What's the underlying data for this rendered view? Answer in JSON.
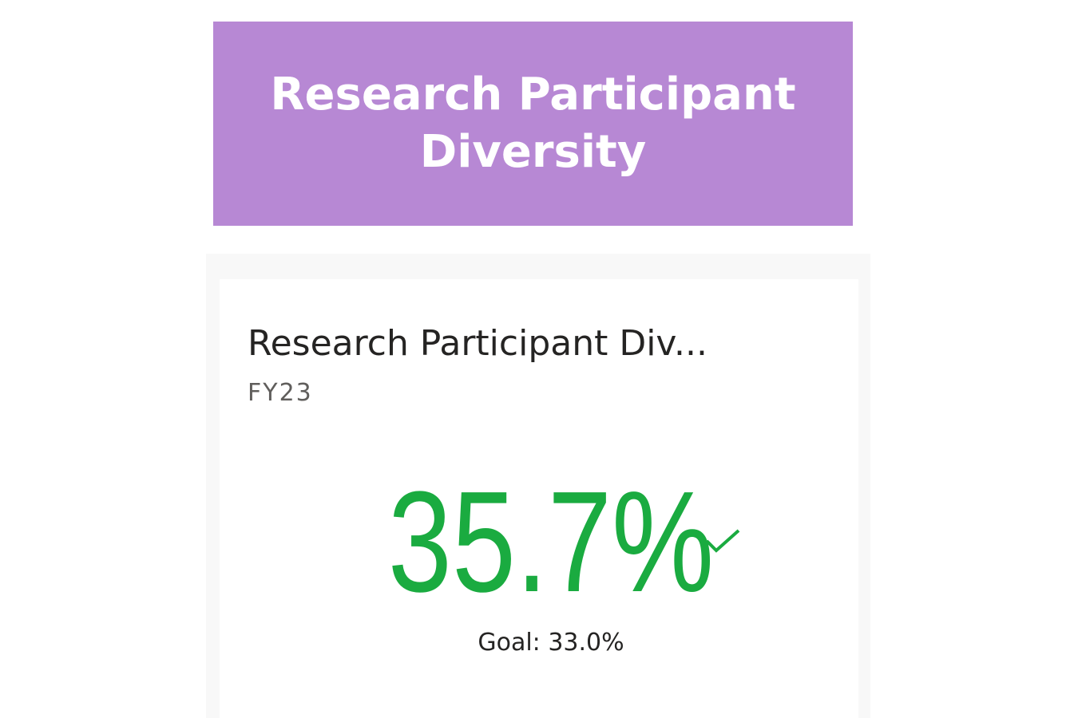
{
  "banner": {
    "title": "Research Participant Diversity"
  },
  "kpi": {
    "title": "Research Participant Div...",
    "subtitle": "FY23",
    "value": "35.7%",
    "goal": "Goal: 33.0%"
  }
}
